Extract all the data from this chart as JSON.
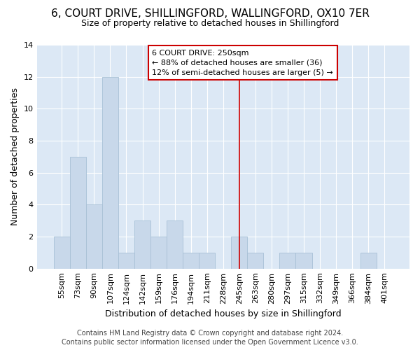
{
  "title": "6, COURT DRIVE, SHILLINGFORD, WALLINGFORD, OX10 7ER",
  "subtitle": "Size of property relative to detached houses in Shillingford",
  "xlabel": "Distribution of detached houses by size in Shillingford",
  "ylabel": "Number of detached properties",
  "bar_color": "#c8d8ea",
  "bar_edgecolor": "#a8c0d6",
  "ax_background_color": "#dce8f5",
  "fig_background_color": "#ffffff",
  "grid_color": "#ffffff",
  "categories": [
    "55sqm",
    "73sqm",
    "90sqm",
    "107sqm",
    "124sqm",
    "142sqm",
    "159sqm",
    "176sqm",
    "194sqm",
    "211sqm",
    "228sqm",
    "245sqm",
    "263sqm",
    "280sqm",
    "297sqm",
    "315sqm",
    "332sqm",
    "349sqm",
    "366sqm",
    "384sqm",
    "401sqm"
  ],
  "values": [
    2,
    7,
    4,
    12,
    1,
    3,
    2,
    3,
    1,
    1,
    0,
    2,
    1,
    0,
    1,
    1,
    0,
    0,
    0,
    1,
    0
  ],
  "vline_bin": 11,
  "annotation_text_lines": [
    "6 COURT DRIVE: 250sqm",
    "← 88% of detached houses are smaller (36)",
    "12% of semi-detached houses are larger (5) →"
  ],
  "ylim": [
    0,
    14
  ],
  "yticks": [
    0,
    2,
    4,
    6,
    8,
    10,
    12,
    14
  ],
  "footer_text": "Contains HM Land Registry data © Crown copyright and database right 2024.\nContains public sector information licensed under the Open Government Licence v3.0.",
  "annotation_box_edgecolor": "#cc0000",
  "vline_color": "#cc0000",
  "title_fontsize": 11,
  "subtitle_fontsize": 9,
  "ylabel_fontsize": 9,
  "xlabel_fontsize": 9,
  "tick_fontsize": 8,
  "annotation_fontsize": 8,
  "footer_fontsize": 7
}
